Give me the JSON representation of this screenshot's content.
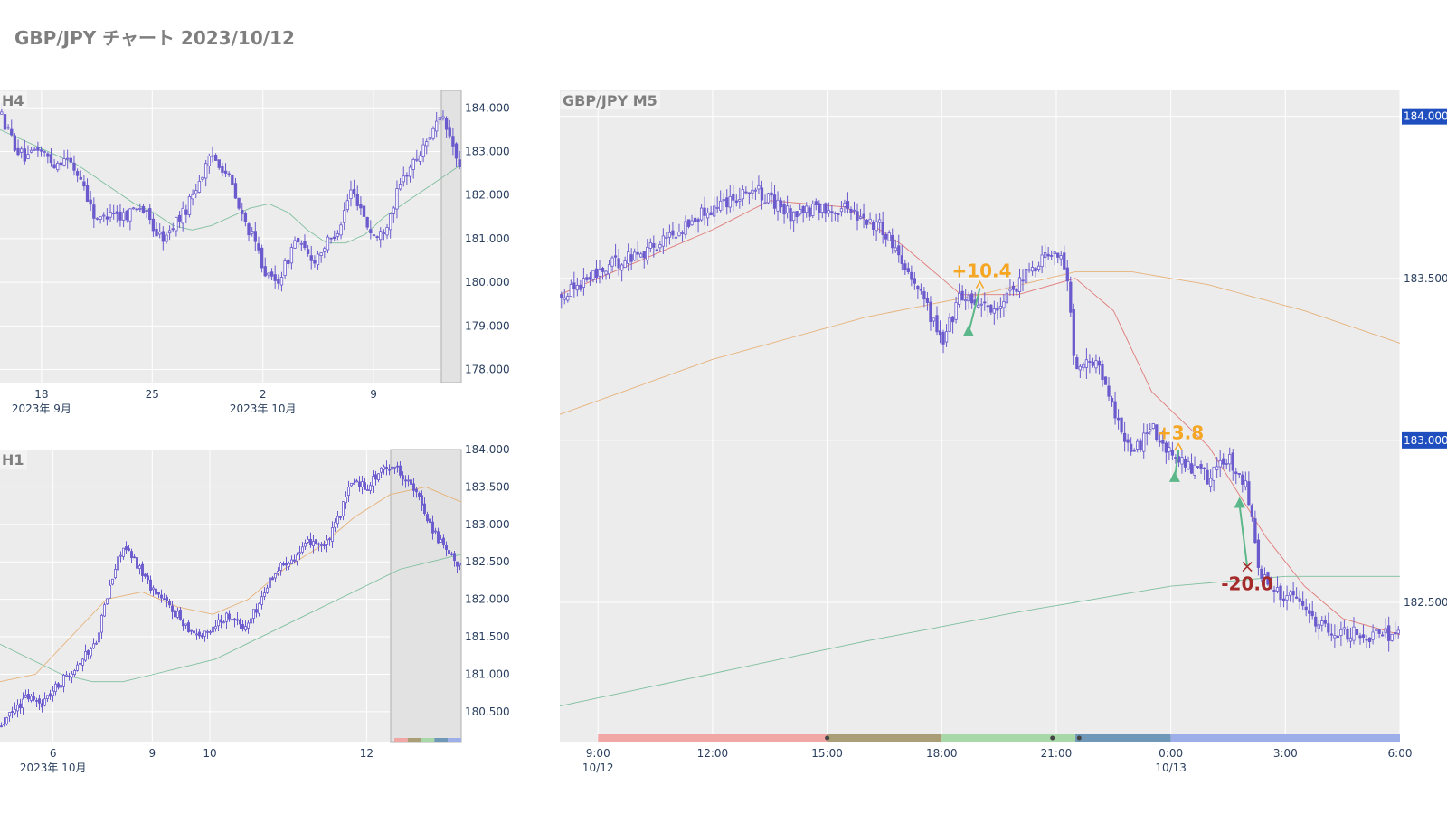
{
  "page_title": "GBP/JPY チャート 2023/10/12",
  "colors": {
    "candle": "#6a5acd",
    "ma_fast": "#e07a7a",
    "ma_slow": "#e6b27a",
    "ma_long": "#7fbf9f",
    "profit": "#f5a623",
    "loss": "#a52a2a",
    "entry": "#5cb88a",
    "price_badge": "#1f4fbf",
    "session_bars": [
      "#f2a7a7",
      "#a99e76",
      "#a8d8a8",
      "#6f97b8",
      "#9daee8"
    ]
  },
  "chart_data": [
    {
      "id": "h4",
      "type": "candlestick",
      "title": "H4",
      "y_ticks": [
        "184.000",
        "183.000",
        "182.000",
        "181.000",
        "180.000",
        "179.000",
        "178.000"
      ],
      "ylim": [
        177.7,
        184.4
      ],
      "x_ticks": [
        {
          "label": "18",
          "sub": "2023年 9月"
        },
        {
          "label": "25",
          "sub": ""
        },
        {
          "label": "2",
          "sub": "2023年 10月"
        },
        {
          "label": "9",
          "sub": ""
        }
      ],
      "highlight": "last-day",
      "price_path": [
        183.9,
        183.4,
        183.0,
        182.8,
        183.1,
        182.9,
        182.7,
        182.9,
        182.6,
        182.3,
        181.6,
        181.4,
        181.7,
        181.5,
        181.6,
        181.8,
        181.5,
        181.1,
        181.0,
        181.4,
        181.6,
        182.1,
        182.5,
        182.9,
        182.7,
        182.3,
        181.6,
        181.2,
        180.7,
        180.1,
        180.0,
        180.4,
        181.0,
        180.7,
        180.5,
        180.8,
        181.0,
        181.4,
        182.1,
        181.8,
        181.2,
        181.0,
        181.4,
        182.0,
        182.5,
        182.8,
        183.1,
        183.6,
        183.7,
        183.2,
        182.4
      ],
      "ma": [
        {
          "name": "MA",
          "color_key": "ma_long",
          "values": [
            183.5,
            183.3,
            183.1,
            182.9,
            182.7,
            182.4,
            182.1,
            181.8,
            181.6,
            181.3,
            181.2,
            181.3,
            181.5,
            181.7,
            181.8,
            181.6,
            181.2,
            180.9,
            180.9,
            181.1,
            181.5,
            181.8,
            182.1,
            182.4,
            182.7
          ]
        }
      ]
    },
    {
      "id": "h1",
      "type": "candlestick",
      "title": "H1",
      "y_ticks": [
        "184.000",
        "183.500",
        "183.000",
        "182.500",
        "182.000",
        "181.500",
        "181.000",
        "180.500"
      ],
      "ylim": [
        180.1,
        184.0
      ],
      "x_ticks": [
        {
          "label": "6",
          "sub": "2023年 10月"
        },
        {
          "label": "9",
          "sub": ""
        },
        {
          "label": "10",
          "sub": ""
        },
        {
          "label": "12",
          "sub": ""
        }
      ],
      "highlight": "last-day",
      "price_path": [
        180.3,
        180.5,
        180.7,
        180.6,
        180.8,
        181.0,
        181.2,
        181.4,
        182.1,
        182.7,
        182.5,
        182.2,
        182.0,
        181.8,
        181.6,
        181.5,
        181.7,
        181.8,
        181.6,
        181.9,
        182.3,
        182.5,
        182.6,
        182.8,
        182.7,
        183.1,
        183.6,
        183.5,
        183.7,
        183.8,
        183.6,
        183.3,
        182.9,
        182.6,
        182.4
      ],
      "ma": [
        {
          "name": "MA",
          "color_key": "ma_long",
          "values": [
            181.4,
            181.2,
            181.0,
            180.9,
            180.9,
            181.0,
            181.1,
            181.2,
            181.4,
            181.6,
            181.8,
            182.0,
            182.2,
            182.4,
            182.5,
            182.6
          ]
        },
        {
          "name": "MA",
          "color_key": "ma_slow",
          "values": [
            180.9,
            181.0,
            181.5,
            182.0,
            182.1,
            181.9,
            181.8,
            182.0,
            182.4,
            182.7,
            183.1,
            183.4,
            183.5,
            183.3
          ]
        }
      ]
    },
    {
      "id": "m5",
      "type": "candlestick",
      "title": "GBP/JPY M5",
      "y_ticks": [
        "184.000",
        "183.500",
        "183.000",
        "182.500"
      ],
      "badges": [
        "184.000",
        "183.000"
      ],
      "ylim": [
        182.07,
        184.08
      ],
      "x_ticks": [
        {
          "label": "9:00",
          "sub": "10/12"
        },
        {
          "label": "12:00",
          "sub": ""
        },
        {
          "label": "15:00",
          "sub": ""
        },
        {
          "label": "18:00",
          "sub": ""
        },
        {
          "label": "21:00",
          "sub": ""
        },
        {
          "label": "0:00",
          "sub": "10/13"
        },
        {
          "label": "3:00",
          "sub": ""
        },
        {
          "label": "6:00",
          "sub": ""
        }
      ],
      "xlim_hours": [
        8.0,
        30.0
      ],
      "price_path": [
        [
          8.0,
          183.45
        ],
        [
          9.5,
          183.55
        ],
        [
          10.5,
          183.6
        ],
        [
          11.5,
          183.68
        ],
        [
          12.0,
          183.72
        ],
        [
          13.0,
          183.78
        ],
        [
          14.0,
          183.7
        ],
        [
          15.5,
          183.72
        ],
        [
          16.5,
          183.65
        ],
        [
          17.5,
          183.45
        ],
        [
          18.0,
          183.3
        ],
        [
          18.5,
          183.45
        ],
        [
          19.5,
          183.4
        ],
        [
          20.0,
          183.48
        ],
        [
          20.5,
          183.55
        ],
        [
          21.0,
          183.6
        ],
        [
          21.3,
          183.5
        ],
        [
          21.5,
          183.2
        ],
        [
          22.0,
          183.25
        ],
        [
          22.5,
          183.1
        ],
        [
          23.0,
          182.95
        ],
        [
          23.5,
          183.05
        ],
        [
          24.0,
          182.95
        ],
        [
          24.5,
          182.92
        ],
        [
          25.0,
          182.88
        ],
        [
          25.5,
          182.95
        ],
        [
          26.0,
          182.85
        ],
        [
          26.3,
          182.62
        ],
        [
          26.5,
          182.55
        ],
        [
          27.0,
          182.52
        ],
        [
          27.5,
          182.48
        ],
        [
          28.0,
          182.42
        ],
        [
          29.0,
          182.4
        ],
        [
          30.0,
          182.4
        ]
      ],
      "ma": [
        {
          "name": "MA",
          "color_key": "ma_fast",
          "values": [
            [
              8.0,
              183.45
            ],
            [
              10.0,
              183.55
            ],
            [
              12.0,
              183.65
            ],
            [
              13.5,
              183.74
            ],
            [
              15.5,
              183.72
            ],
            [
              17.0,
              183.6
            ],
            [
              18.5,
              183.45
            ],
            [
              20.0,
              183.45
            ],
            [
              21.5,
              183.5
            ],
            [
              22.5,
              183.4
            ],
            [
              23.5,
              183.15
            ],
            [
              25.0,
              182.98
            ],
            [
              26.5,
              182.7
            ],
            [
              27.5,
              182.55
            ],
            [
              28.5,
              182.45
            ],
            [
              30.0,
              182.4
            ]
          ]
        },
        {
          "name": "MA",
          "color_key": "ma_slow",
          "values": [
            [
              8.0,
              183.08
            ],
            [
              12.0,
              183.25
            ],
            [
              16.0,
              183.38
            ],
            [
              19.0,
              183.45
            ],
            [
              21.5,
              183.52
            ],
            [
              23.0,
              183.52
            ],
            [
              25.0,
              183.48
            ],
            [
              27.5,
              183.4
            ],
            [
              30.0,
              183.3
            ]
          ]
        },
        {
          "name": "MA",
          "color_key": "ma_long",
          "values": [
            [
              8.0,
              182.18
            ],
            [
              12.0,
              182.28
            ],
            [
              16.0,
              182.38
            ],
            [
              20.0,
              182.47
            ],
            [
              24.0,
              182.55
            ],
            [
              27.0,
              182.58
            ],
            [
              30.0,
              182.58
            ]
          ]
        }
      ],
      "trades": [
        {
          "entry": [
            18.7,
            183.33
          ],
          "exit": [
            19.0,
            183.47
          ],
          "annotation": "+10.4",
          "result": "profit"
        },
        {
          "entry": [
            24.1,
            182.88
          ],
          "exit": [
            24.2,
            182.97
          ],
          "annotation": "+3.8",
          "result": "profit"
        },
        {
          "entry": [
            25.8,
            182.8
          ],
          "exit": [
            26.0,
            182.61
          ],
          "annotation": "-20.0",
          "result": "loss"
        }
      ],
      "sessions": [
        {
          "from": 9.0,
          "to": 15.0,
          "color_index": 0
        },
        {
          "from": 15.0,
          "to": 18.0,
          "color_index": 1
        },
        {
          "from": 18.0,
          "to": 21.5,
          "color_index": 2
        },
        {
          "from": 21.5,
          "to": 24.0,
          "color_index": 3
        },
        {
          "from": 24.0,
          "to": 30.0,
          "color_index": 4
        }
      ]
    }
  ]
}
